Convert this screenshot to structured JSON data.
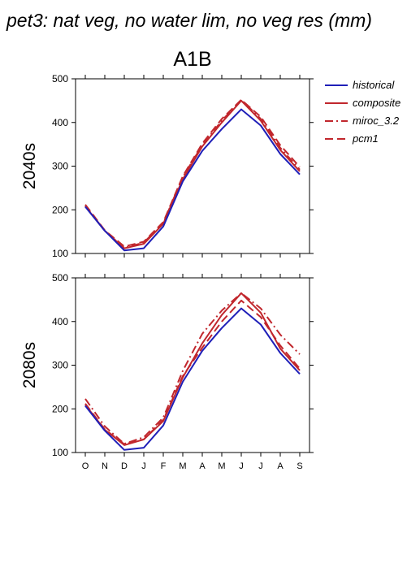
{
  "header": {
    "title": "pet3: nat veg, no water lim, no veg res (mm)",
    "scenario": "A1B"
  },
  "colors": {
    "historical": "#1f1fb8",
    "scenario": "#c1272d",
    "axis": "#000000"
  },
  "legend": {
    "items": [
      {
        "label": "historical",
        "style": "solid",
        "color": "#1f1fb8"
      },
      {
        "label": "composite",
        "style": "solid",
        "color": "#c1272d"
      },
      {
        "label": "miroc_3.2",
        "style": "dashdot",
        "color": "#c1272d"
      },
      {
        "label": "pcm1",
        "style": "dashed",
        "color": "#c1272d"
      }
    ]
  },
  "chart_data": [
    {
      "type": "line",
      "row_label": "2040s",
      "categories": [
        "O",
        "N",
        "D",
        "J",
        "F",
        "M",
        "A",
        "M",
        "J",
        "J",
        "A",
        "S"
      ],
      "ylim": [
        100,
        500
      ],
      "yticks": [
        100,
        200,
        300,
        400,
        500
      ],
      "show_x_tick_labels": false,
      "series": [
        {
          "name": "historical",
          "style": "solid",
          "values": [
            207,
            152,
            107,
            112,
            162,
            265,
            335,
            385,
            430,
            393,
            328,
            281
          ]
        },
        {
          "name": "composite",
          "style": "solid",
          "values": [
            208,
            152,
            112,
            122,
            168,
            270,
            345,
            400,
            450,
            404,
            337,
            288
          ]
        },
        {
          "name": "miroc_3.2",
          "style": "dashdot",
          "values": [
            209,
            152,
            113,
            125,
            170,
            275,
            348,
            404,
            452,
            408,
            342,
            292
          ]
        },
        {
          "name": "pcm1",
          "style": "dashed",
          "values": [
            212,
            153,
            116,
            127,
            172,
            277,
            352,
            408,
            452,
            413,
            348,
            298
          ]
        }
      ]
    },
    {
      "type": "line",
      "row_label": "2080s",
      "categories": [
        "O",
        "N",
        "D",
        "J",
        "F",
        "M",
        "A",
        "M",
        "J",
        "J",
        "A",
        "S"
      ],
      "ylim": [
        100,
        500
      ],
      "yticks": [
        100,
        200,
        300,
        400,
        500
      ],
      "show_x_tick_labels": true,
      "series": [
        {
          "name": "historical",
          "style": "solid",
          "values": [
            207,
            150,
            106,
            111,
            162,
            262,
            333,
            385,
            430,
            393,
            328,
            280
          ]
        },
        {
          "name": "composite",
          "style": "solid",
          "values": [
            209,
            152,
            117,
            130,
            172,
            272,
            350,
            415,
            465,
            420,
            338,
            288
          ]
        },
        {
          "name": "miroc_3.2",
          "style": "dashdot",
          "values": [
            223,
            160,
            120,
            135,
            180,
            287,
            372,
            425,
            465,
            430,
            370,
            325
          ]
        },
        {
          "name": "pcm1",
          "style": "dashed",
          "values": [
            212,
            153,
            119,
            130,
            175,
            275,
            340,
            400,
            448,
            410,
            345,
            292
          ]
        }
      ]
    }
  ]
}
